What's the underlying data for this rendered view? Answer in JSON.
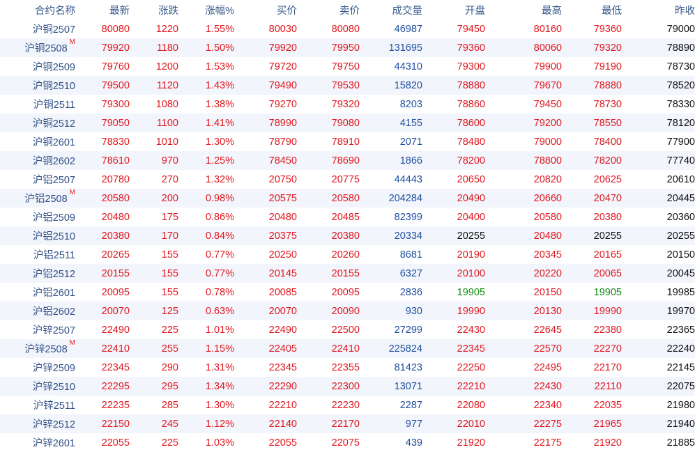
{
  "headers": {
    "name": "合约名称",
    "last": "最新",
    "change": "涨跌",
    "pct": "涨幅%",
    "bid": "买价",
    "ask": "卖价",
    "volume": "成交量",
    "open": "开盘",
    "high": "最高",
    "low": "最低",
    "prev": "昨收"
  },
  "colors": {
    "up": "#e0171f",
    "down": "#128a12",
    "volume": "#1f4f9f",
    "neutral": "#111111",
    "header": "#3a5a8c"
  },
  "rows": [
    {
      "name": "沪铜2507",
      "m": "",
      "last": "80080",
      "change": "1220",
      "pct": "1.55%",
      "bid": "80030",
      "ask": "80080",
      "volume": "46987",
      "open": "79450",
      "high": "80160",
      "low": "79360",
      "prev": "79000"
    },
    {
      "name": "沪铜2508",
      "m": "M",
      "last": "79920",
      "change": "1180",
      "pct": "1.50%",
      "bid": "79920",
      "ask": "79950",
      "volume": "131695",
      "open": "79360",
      "high": "80060",
      "low": "79320",
      "prev": "78890"
    },
    {
      "name": "沪铜2509",
      "m": "",
      "last": "79760",
      "change": "1200",
      "pct": "1.53%",
      "bid": "79720",
      "ask": "79750",
      "volume": "44310",
      "open": "79300",
      "high": "79900",
      "low": "79190",
      "prev": "78730"
    },
    {
      "name": "沪铜2510",
      "m": "",
      "last": "79500",
      "change": "1120",
      "pct": "1.43%",
      "bid": "79490",
      "ask": "79530",
      "volume": "15820",
      "open": "78880",
      "high": "79670",
      "low": "78880",
      "prev": "78520"
    },
    {
      "name": "沪铜2511",
      "m": "",
      "last": "79300",
      "change": "1080",
      "pct": "1.38%",
      "bid": "79270",
      "ask": "79320",
      "volume": "8203",
      "open": "78860",
      "high": "79450",
      "low": "78730",
      "prev": "78330"
    },
    {
      "name": "沪铜2512",
      "m": "",
      "last": "79050",
      "change": "1100",
      "pct": "1.41%",
      "bid": "78990",
      "ask": "79080",
      "volume": "4155",
      "open": "78600",
      "high": "79200",
      "low": "78550",
      "prev": "78120"
    },
    {
      "name": "沪铜2601",
      "m": "",
      "last": "78830",
      "change": "1010",
      "pct": "1.30%",
      "bid": "78790",
      "ask": "78910",
      "volume": "2071",
      "open": "78480",
      "high": "79000",
      "low": "78400",
      "prev": "77900"
    },
    {
      "name": "沪铜2602",
      "m": "",
      "last": "78610",
      "change": "970",
      "pct": "1.25%",
      "bid": "78450",
      "ask": "78690",
      "volume": "1866",
      "open": "78200",
      "high": "78800",
      "low": "78200",
      "prev": "77740"
    },
    {
      "name": "沪铝2507",
      "m": "",
      "last": "20780",
      "change": "270",
      "pct": "1.32%",
      "bid": "20750",
      "ask": "20775",
      "volume": "44443",
      "open": "20650",
      "high": "20820",
      "low": "20625",
      "prev": "20610"
    },
    {
      "name": "沪铝2508",
      "m": "M",
      "last": "20580",
      "change": "200",
      "pct": "0.98%",
      "bid": "20575",
      "ask": "20580",
      "volume": "204284",
      "open": "20490",
      "high": "20660",
      "low": "20470",
      "prev": "20445"
    },
    {
      "name": "沪铝2509",
      "m": "",
      "last": "20480",
      "change": "175",
      "pct": "0.86%",
      "bid": "20480",
      "ask": "20485",
      "volume": "82399",
      "open": "20400",
      "high": "20580",
      "low": "20380",
      "prev": "20360"
    },
    {
      "name": "沪铝2510",
      "m": "",
      "last": "20380",
      "change": "170",
      "pct": "0.84%",
      "bid": "20375",
      "ask": "20380",
      "volume": "20334",
      "open": "20255",
      "high": "20480",
      "low": "20255",
      "prev": "20255"
    },
    {
      "name": "沪铝2511",
      "m": "",
      "last": "20265",
      "change": "155",
      "pct": "0.77%",
      "bid": "20250",
      "ask": "20260",
      "volume": "8681",
      "open": "20190",
      "high": "20345",
      "low": "20165",
      "prev": "20150"
    },
    {
      "name": "沪铝2512",
      "m": "",
      "last": "20155",
      "change": "155",
      "pct": "0.77%",
      "bid": "20145",
      "ask": "20155",
      "volume": "6327",
      "open": "20100",
      "high": "20220",
      "low": "20065",
      "prev": "20045"
    },
    {
      "name": "沪铝2601",
      "m": "",
      "last": "20095",
      "change": "155",
      "pct": "0.78%",
      "bid": "20085",
      "ask": "20095",
      "volume": "2836",
      "open": "19905",
      "high": "20150",
      "low": "19905",
      "prev": "19985"
    },
    {
      "name": "沪铝2602",
      "m": "",
      "last": "20070",
      "change": "125",
      "pct": "0.63%",
      "bid": "20070",
      "ask": "20090",
      "volume": "930",
      "open": "19990",
      "high": "20130",
      "low": "19990",
      "prev": "19970"
    },
    {
      "name": "沪锌2507",
      "m": "",
      "last": "22490",
      "change": "225",
      "pct": "1.01%",
      "bid": "22490",
      "ask": "22500",
      "volume": "27299",
      "open": "22430",
      "high": "22645",
      "low": "22380",
      "prev": "22365"
    },
    {
      "name": "沪锌2508",
      "m": "M",
      "last": "22410",
      "change": "255",
      "pct": "1.15%",
      "bid": "22405",
      "ask": "22410",
      "volume": "225824",
      "open": "22345",
      "high": "22570",
      "low": "22270",
      "prev": "22240"
    },
    {
      "name": "沪锌2509",
      "m": "",
      "last": "22345",
      "change": "290",
      "pct": "1.31%",
      "bid": "22345",
      "ask": "22355",
      "volume": "81423",
      "open": "22250",
      "high": "22495",
      "low": "22170",
      "prev": "22145"
    },
    {
      "name": "沪锌2510",
      "m": "",
      "last": "22295",
      "change": "295",
      "pct": "1.34%",
      "bid": "22290",
      "ask": "22300",
      "volume": "13071",
      "open": "22210",
      "high": "22430",
      "low": "22110",
      "prev": "22075"
    },
    {
      "name": "沪锌2511",
      "m": "",
      "last": "22235",
      "change": "285",
      "pct": "1.30%",
      "bid": "22210",
      "ask": "22230",
      "volume": "2287",
      "open": "22080",
      "high": "22340",
      "low": "22035",
      "prev": "21980"
    },
    {
      "name": "沪锌2512",
      "m": "",
      "last": "22150",
      "change": "245",
      "pct": "1.12%",
      "bid": "22140",
      "ask": "22170",
      "volume": "977",
      "open": "22010",
      "high": "22275",
      "low": "21965",
      "prev": "21940"
    },
    {
      "name": "沪锌2601",
      "m": "",
      "last": "22055",
      "change": "225",
      "pct": "1.03%",
      "bid": "22055",
      "ask": "22075",
      "volume": "439",
      "open": "21920",
      "high": "22175",
      "low": "21920",
      "prev": "21885"
    }
  ]
}
